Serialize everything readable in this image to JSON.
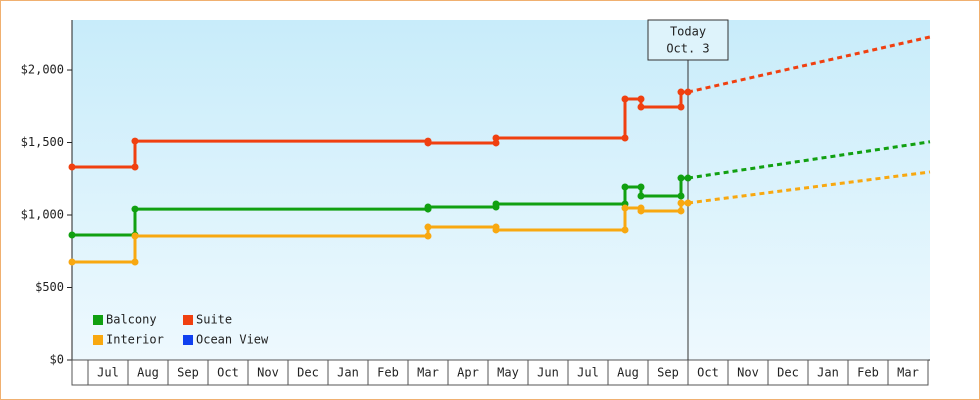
{
  "chart_data": {
    "type": "line",
    "step": true,
    "categories": [
      "Jul",
      "Aug",
      "Sep",
      "Oct",
      "Nov",
      "Dec",
      "Jan",
      "Feb",
      "Mar",
      "Apr",
      "May",
      "Jun",
      "Jul",
      "Aug",
      "Sep",
      "Oct",
      "Nov",
      "Dec",
      "Jan",
      "Feb",
      "Mar"
    ],
    "xlim": [
      -0.4,
      21.05
    ],
    "ylim": [
      0,
      2345
    ],
    "yticks": [
      {
        "value": 0,
        "label": "$0"
      },
      {
        "value": 500,
        "label": "$500"
      },
      {
        "value": 1000,
        "label": "$1,000"
      },
      {
        "value": 1500,
        "label": "$1,500"
      },
      {
        "value": 2000,
        "label": "$2,000"
      }
    ],
    "today": {
      "x": 15,
      "label": "Today",
      "date": "Oct. 3"
    },
    "series": [
      {
        "name": "Balcony",
        "color": "#11a011",
        "x": [
          -0.4,
          1.175,
          1.175,
          8.5,
          8.5,
          10.2,
          10.2,
          13.425,
          13.425,
          13.825,
          13.825,
          14.825,
          14.825,
          15
        ],
        "values": [
          862,
          862,
          1041,
          1041,
          1055,
          1055,
          1076,
          1076,
          1193,
          1193,
          1131,
          1131,
          1255,
          1255
        ],
        "projection": {
          "x": [
            15,
            21.05
          ],
          "values": [
            1255,
            1505
          ]
        }
      },
      {
        "name": "Suite",
        "color": "#f04010",
        "x": [
          -0.4,
          1.175,
          1.175,
          8.5,
          8.5,
          10.2,
          10.2,
          13.425,
          13.425,
          13.825,
          13.825,
          14.825,
          14.825,
          15
        ],
        "values": [
          1331,
          1331,
          1510,
          1510,
          1497,
          1497,
          1531,
          1531,
          1800,
          1800,
          1745,
          1745,
          1848,
          1848
        ],
        "projection": {
          "x": [
            15,
            21.05
          ],
          "values": [
            1848,
            2228
          ]
        }
      },
      {
        "name": "Interior",
        "color": "#f8a810",
        "x": [
          -0.4,
          1.175,
          1.175,
          8.5,
          8.5,
          10.2,
          10.2,
          13.425,
          13.425,
          13.825,
          13.825,
          14.825,
          14.825,
          15
        ],
        "values": [
          676,
          676,
          855,
          855,
          917,
          917,
          897,
          897,
          1048,
          1048,
          1028,
          1028,
          1083,
          1083
        ],
        "projection": {
          "x": [
            15,
            21.05
          ],
          "values": [
            1083,
            1297
          ]
        }
      },
      {
        "name": "Ocean View",
        "color": "#1040f0",
        "x": [],
        "values": []
      }
    ]
  }
}
